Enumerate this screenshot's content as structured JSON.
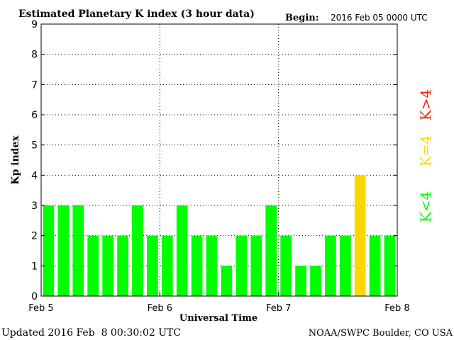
{
  "chart_data": {
    "type": "bar",
    "title": "Estimated Planetary K index (3 hour data)",
    "begin_label": "Begin:",
    "begin_value": "2016 Feb 05 0000 UTC",
    "ylabel": "Kp index",
    "xlabel": "Universal Time",
    "ylim": [
      0,
      9
    ],
    "y_ticks": [
      "0",
      "1",
      "2",
      "3",
      "4",
      "5",
      "6",
      "7",
      "8",
      "9"
    ],
    "x_tick_labels": [
      "Feb 5",
      "Feb 6",
      "Feb 7",
      "Feb 8"
    ],
    "values": [
      3,
      3,
      3,
      2,
      2,
      2,
      3,
      2,
      2,
      3,
      2,
      2,
      1,
      2,
      2,
      3,
      2,
      1,
      1,
      2,
      2,
      4,
      2,
      2
    ],
    "colors": {
      "below_4": "#00ff00",
      "equal_4": "#ffd700",
      "above_4": "#ff0000"
    },
    "legend": [
      "K<4",
      "K=4",
      "K>4"
    ],
    "grid": "dotted"
  },
  "footer": {
    "updated": "Updated 2016 Feb  8 00:30:02 UTC",
    "credit": "NOAA/SWPC Boulder, CO USA"
  }
}
